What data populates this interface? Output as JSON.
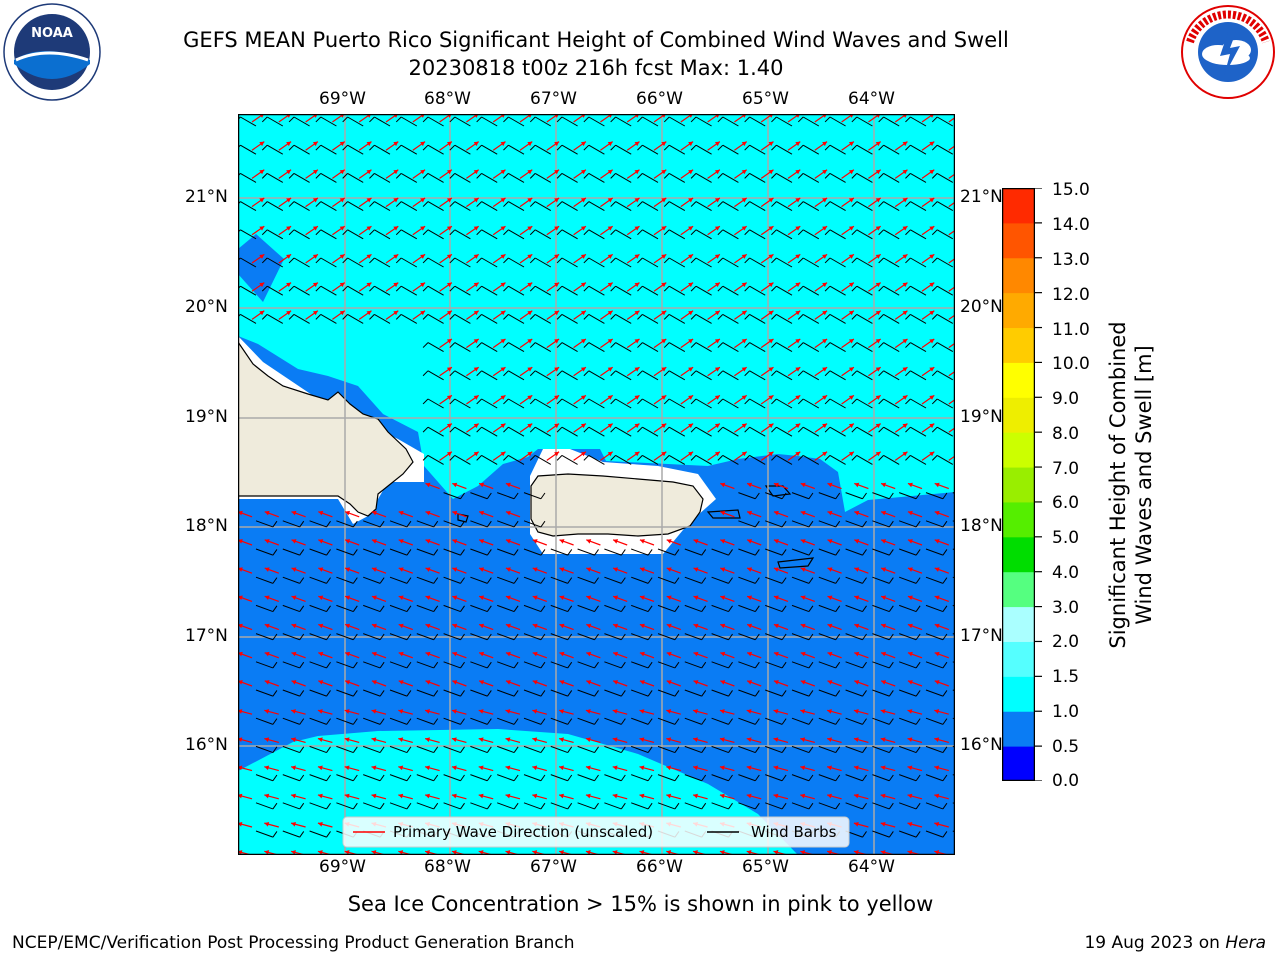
{
  "header": {
    "title_line1": "GEFS MEAN Puerto Rico Significant Height of Combined Wind Waves and Swell",
    "title_line2": "20230818 t00z 216h fcst   Max: 1.40"
  },
  "logos": {
    "left": {
      "text": "NOAA",
      "ring_text": "NATIONAL OCEANIC AND ATMOSPHERIC ADMINISTRATION · U.S. DEPARTMENT OF COMMERCE"
    },
    "right": {
      "ring_text": "NATIONAL WEATHER SERVICE"
    }
  },
  "map": {
    "lon_ticks": [
      "69°W",
      "68°W",
      "67°W",
      "66°W",
      "65°W",
      "64°W"
    ],
    "lat_ticks": [
      "21°N",
      "20°N",
      "19°N",
      "18°N",
      "17°N",
      "16°N"
    ],
    "colors": {
      "ocean_light": "#00ffff",
      "ocean_mid": "#0a7cf4",
      "land": "#efebdc",
      "wave_arrow": "#ff0000",
      "barb": "#000000"
    },
    "legend": {
      "primary_wave": "Primary Wave Direction (unscaled)",
      "wind_barbs": "Wind Barbs"
    }
  },
  "colorbar": {
    "label_line1": "Significant Height of Combined",
    "label_line2": "Wind Waves and Swell [m]",
    "ticks": [
      "15.0",
      "14.0",
      "13.0",
      "12.0",
      "11.0",
      "10.0",
      "9.0",
      "8.0",
      "7.0",
      "6.0",
      "5.0",
      "4.0",
      "3.0",
      "2.0",
      "1.5",
      "1.0",
      "0.5",
      "0.0"
    ],
    "colors_bottom_to_top": [
      "#0000ff",
      "#0a7cf4",
      "#00ffff",
      "#55ffff",
      "#aaffff",
      "#55ff80",
      "#00dd00",
      "#55ee00",
      "#99ee00",
      "#ccff00",
      "#eeee00",
      "#ffff00",
      "#ffcc00",
      "#ffaa00",
      "#ff8800",
      "#ff5500",
      "#ff2a00"
    ]
  },
  "sea_ice_note": "Sea Ice Concentration > 15% is shown in pink to yellow",
  "footer": {
    "left": "NCEP/EMC/Verification Post Processing Product Generation Branch",
    "right_prefix": "19 Aug 2023 on",
    "right_host": "Hera"
  }
}
